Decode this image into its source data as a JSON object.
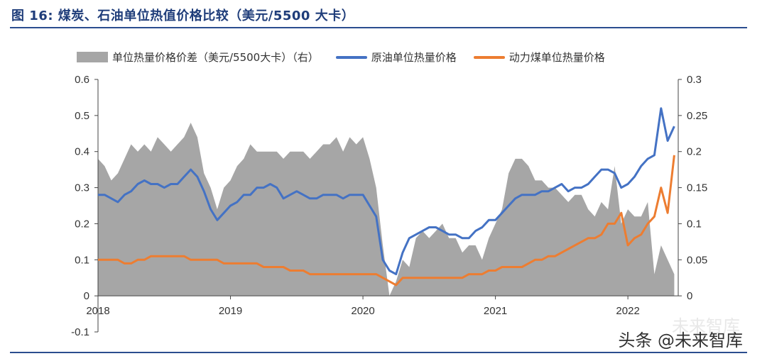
{
  "title": "图 16: 煤炭、石油单位热值价格比较（美元/5500 大卡）",
  "watermark_back": "未来智库",
  "watermark_front": "头条 @未来智库",
  "chart_data": {
    "type": "line",
    "title": "图 16: 煤炭、石油单位热值价格比较（美元/5500 大卡）",
    "legend_position": "top",
    "x_ticks": [
      "2018",
      "2019",
      "2020",
      "2021",
      "2022"
    ],
    "x_range": [
      2018.0,
      2022.38
    ],
    "y_left": {
      "range": [
        -0.1,
        0.6
      ],
      "ticks": [
        "0.6",
        "0.5",
        "0.4",
        "0.3",
        "0.2",
        "0.1",
        "0",
        "-0.1"
      ],
      "tick_values": [
        0.6,
        0.5,
        0.4,
        0.3,
        0.2,
        0.1,
        0,
        -0.1
      ]
    },
    "y_right": {
      "range": [
        0,
        0.3
      ],
      "ticks": [
        "0.3",
        "0.25",
        "0.2",
        "0.15",
        "0.1",
        "0.05",
        "0"
      ],
      "tick_values": [
        0.3,
        0.25,
        0.2,
        0.15,
        0.1,
        0.05,
        0
      ]
    },
    "grid": false,
    "series": [
      {
        "name": "单位热量价格价差（美元/5500大卡）（右）",
        "kind": "area",
        "axis": "right",
        "color": "#a6a6a6",
        "x": [
          2018.0,
          2018.05,
          2018.1,
          2018.15,
          2018.2,
          2018.25,
          2018.3,
          2018.35,
          2018.4,
          2018.45,
          2018.5,
          2018.55,
          2018.6,
          2018.65,
          2018.7,
          2018.75,
          2018.8,
          2018.85,
          2018.9,
          2018.95,
          2019.0,
          2019.05,
          2019.1,
          2019.15,
          2019.2,
          2019.25,
          2019.3,
          2019.35,
          2019.4,
          2019.45,
          2019.5,
          2019.55,
          2019.6,
          2019.65,
          2019.7,
          2019.75,
          2019.8,
          2019.85,
          2019.9,
          2019.95,
          2020.0,
          2020.05,
          2020.1,
          2020.15,
          2020.2,
          2020.25,
          2020.3,
          2020.35,
          2020.4,
          2020.45,
          2020.5,
          2020.55,
          2020.6,
          2020.65,
          2020.7,
          2020.75,
          2020.8,
          2020.85,
          2020.9,
          2020.95,
          2021.0,
          2021.05,
          2021.1,
          2021.15,
          2021.2,
          2021.25,
          2021.3,
          2021.35,
          2021.4,
          2021.45,
          2021.5,
          2021.55,
          2021.6,
          2021.65,
          2021.7,
          2021.75,
          2021.8,
          2021.85,
          2021.9,
          2021.95,
          2022.0,
          2022.05,
          2022.1,
          2022.15,
          2022.2,
          2022.25,
          2022.3,
          2022.35
        ],
        "values": [
          0.19,
          0.18,
          0.16,
          0.17,
          0.19,
          0.21,
          0.2,
          0.21,
          0.2,
          0.22,
          0.21,
          0.2,
          0.21,
          0.22,
          0.24,
          0.22,
          0.17,
          0.15,
          0.12,
          0.15,
          0.16,
          0.18,
          0.19,
          0.21,
          0.2,
          0.2,
          0.2,
          0.2,
          0.19,
          0.2,
          0.2,
          0.2,
          0.19,
          0.2,
          0.21,
          0.21,
          0.22,
          0.2,
          0.22,
          0.21,
          0.22,
          0.19,
          0.15,
          0.07,
          0.0,
          0.02,
          0.05,
          0.04,
          0.08,
          0.09,
          0.08,
          0.09,
          0.1,
          0.08,
          0.08,
          0.06,
          0.07,
          0.07,
          0.05,
          0.08,
          0.1,
          0.12,
          0.17,
          0.19,
          0.19,
          0.18,
          0.16,
          0.16,
          0.15,
          0.15,
          0.14,
          0.13,
          0.14,
          0.14,
          0.12,
          0.11,
          0.13,
          0.12,
          0.18,
          0.1,
          0.12,
          0.11,
          0.11,
          0.13,
          0.03,
          0.07,
          0.05,
          0.03
        ]
      },
      {
        "name": "原油单位热量价格",
        "kind": "line",
        "axis": "left",
        "color": "#4472c4",
        "x": [
          2018.0,
          2018.05,
          2018.1,
          2018.15,
          2018.2,
          2018.25,
          2018.3,
          2018.35,
          2018.4,
          2018.45,
          2018.5,
          2018.55,
          2018.6,
          2018.65,
          2018.7,
          2018.75,
          2018.8,
          2018.85,
          2018.9,
          2018.95,
          2019.0,
          2019.05,
          2019.1,
          2019.15,
          2019.2,
          2019.25,
          2019.3,
          2019.35,
          2019.4,
          2019.45,
          2019.5,
          2019.55,
          2019.6,
          2019.65,
          2019.7,
          2019.75,
          2019.8,
          2019.85,
          2019.9,
          2019.95,
          2020.0,
          2020.05,
          2020.1,
          2020.15,
          2020.2,
          2020.25,
          2020.3,
          2020.35,
          2020.4,
          2020.45,
          2020.5,
          2020.55,
          2020.6,
          2020.65,
          2020.7,
          2020.75,
          2020.8,
          2020.85,
          2020.9,
          2020.95,
          2021.0,
          2021.05,
          2021.1,
          2021.15,
          2021.2,
          2021.25,
          2021.3,
          2021.35,
          2021.4,
          2021.45,
          2021.5,
          2021.55,
          2021.6,
          2021.65,
          2021.7,
          2021.75,
          2021.8,
          2021.85,
          2021.9,
          2021.95,
          2022.0,
          2022.05,
          2022.1,
          2022.15,
          2022.2,
          2022.25,
          2022.3,
          2022.35
        ],
        "values": [
          0.28,
          0.28,
          0.27,
          0.26,
          0.28,
          0.29,
          0.31,
          0.32,
          0.31,
          0.31,
          0.3,
          0.31,
          0.31,
          0.33,
          0.35,
          0.33,
          0.29,
          0.24,
          0.21,
          0.23,
          0.25,
          0.26,
          0.28,
          0.28,
          0.3,
          0.3,
          0.31,
          0.3,
          0.27,
          0.28,
          0.29,
          0.28,
          0.27,
          0.27,
          0.28,
          0.28,
          0.28,
          0.27,
          0.28,
          0.28,
          0.28,
          0.25,
          0.22,
          0.1,
          0.07,
          0.06,
          0.12,
          0.16,
          0.17,
          0.18,
          0.19,
          0.19,
          0.18,
          0.17,
          0.17,
          0.16,
          0.16,
          0.18,
          0.19,
          0.21,
          0.21,
          0.23,
          0.25,
          0.27,
          0.28,
          0.28,
          0.28,
          0.29,
          0.29,
          0.3,
          0.31,
          0.29,
          0.3,
          0.3,
          0.31,
          0.33,
          0.35,
          0.35,
          0.34,
          0.3,
          0.31,
          0.33,
          0.36,
          0.38,
          0.39,
          0.52,
          0.43,
          0.47
        ]
      },
      {
        "name": "动力煤单位热量价格",
        "kind": "line",
        "axis": "left",
        "color": "#ed7d31",
        "x": [
          2018.0,
          2018.05,
          2018.1,
          2018.15,
          2018.2,
          2018.25,
          2018.3,
          2018.35,
          2018.4,
          2018.45,
          2018.5,
          2018.55,
          2018.6,
          2018.65,
          2018.7,
          2018.75,
          2018.8,
          2018.85,
          2018.9,
          2018.95,
          2019.0,
          2019.05,
          2019.1,
          2019.15,
          2019.2,
          2019.25,
          2019.3,
          2019.35,
          2019.4,
          2019.45,
          2019.5,
          2019.55,
          2019.6,
          2019.65,
          2019.7,
          2019.75,
          2019.8,
          2019.85,
          2019.9,
          2019.95,
          2020.0,
          2020.05,
          2020.1,
          2020.15,
          2020.2,
          2020.25,
          2020.3,
          2020.35,
          2020.4,
          2020.45,
          2020.5,
          2020.55,
          2020.6,
          2020.65,
          2020.7,
          2020.75,
          2020.8,
          2020.85,
          2020.9,
          2020.95,
          2021.0,
          2021.05,
          2021.1,
          2021.15,
          2021.2,
          2021.25,
          2021.3,
          2021.35,
          2021.4,
          2021.45,
          2021.5,
          2021.55,
          2021.6,
          2021.65,
          2021.7,
          2021.75,
          2021.8,
          2021.85,
          2021.9,
          2021.95,
          2022.0,
          2022.05,
          2022.1,
          2022.15,
          2022.2,
          2022.25,
          2022.3,
          2022.35
        ],
        "values": [
          0.1,
          0.1,
          0.1,
          0.1,
          0.09,
          0.09,
          0.1,
          0.1,
          0.11,
          0.11,
          0.11,
          0.11,
          0.11,
          0.11,
          0.1,
          0.1,
          0.1,
          0.1,
          0.1,
          0.09,
          0.09,
          0.09,
          0.09,
          0.09,
          0.09,
          0.08,
          0.08,
          0.08,
          0.08,
          0.07,
          0.07,
          0.07,
          0.06,
          0.06,
          0.06,
          0.06,
          0.06,
          0.06,
          0.06,
          0.06,
          0.06,
          0.06,
          0.06,
          0.05,
          0.04,
          0.03,
          0.05,
          0.05,
          0.05,
          0.05,
          0.05,
          0.05,
          0.05,
          0.05,
          0.05,
          0.05,
          0.06,
          0.06,
          0.06,
          0.07,
          0.07,
          0.08,
          0.08,
          0.08,
          0.08,
          0.09,
          0.1,
          0.1,
          0.11,
          0.11,
          0.12,
          0.13,
          0.14,
          0.15,
          0.16,
          0.16,
          0.17,
          0.2,
          0.2,
          0.23,
          0.14,
          0.16,
          0.17,
          0.2,
          0.22,
          0.3,
          0.23,
          0.39
        ]
      }
    ]
  }
}
